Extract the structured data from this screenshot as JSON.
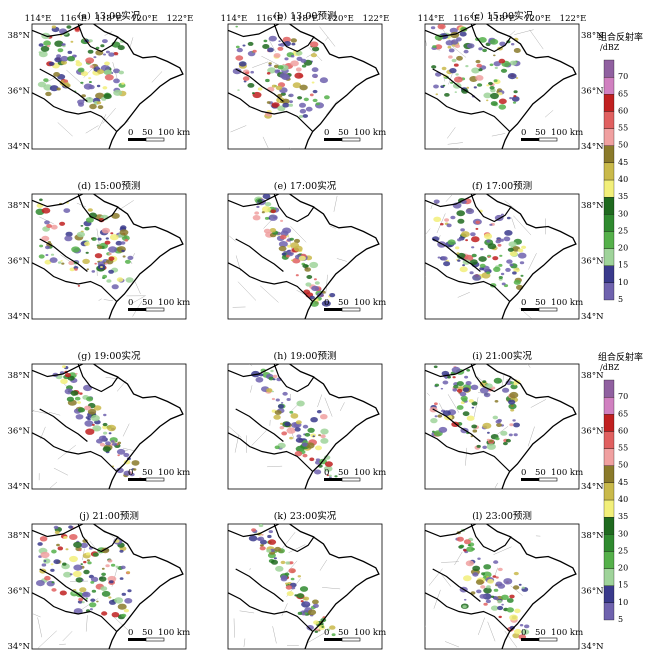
{
  "figure": {
    "panels": [
      {
        "label": "(a) 13:00实况",
        "pattern": "obs-early"
      },
      {
        "label": "(b) 13:00预测",
        "pattern": "fc-early"
      },
      {
        "label": "(c) 15:00实况",
        "pattern": "obs-mid"
      },
      {
        "label": "(d) 15:00预测",
        "pattern": "fc-mid"
      },
      {
        "label": "(e) 17:00实况",
        "pattern": "obs-line"
      },
      {
        "label": "(f) 17:00预测",
        "pattern": "fc-mid2"
      },
      {
        "label": "(g) 19:00实况",
        "pattern": "obs-line2"
      },
      {
        "label": "(h) 19:00预测",
        "pattern": "fc-line"
      },
      {
        "label": "(i) 21:00实况",
        "pattern": "obs-late"
      },
      {
        "label": "(j) 21:00预测",
        "pattern": "fc-late"
      },
      {
        "label": "(k) 23:00实况",
        "pattern": "obs-end"
      },
      {
        "label": "(l) 23:00预测",
        "pattern": "fc-end"
      }
    ],
    "lon_ticks": [
      "114°E",
      "116°E",
      "118°E",
      "120°E",
      "122°E"
    ],
    "lat_ticks": [
      "38°N",
      "36°N",
      "34°N"
    ],
    "scalebar": {
      "labels": [
        "0",
        "50",
        "100 km"
      ]
    },
    "colorbar": {
      "title": "组合反射率",
      "unit": "/dBZ",
      "levels": [
        "5",
        "10",
        "15",
        "20",
        "25",
        "30",
        "35",
        "40",
        "45",
        "50",
        "55",
        "60",
        "65",
        "70"
      ],
      "colors": [
        "#6f62ae",
        "#3a3a8c",
        "#9fd39a",
        "#55b04a",
        "#2f8a2f",
        "#1f6a1f",
        "#f2ef7a",
        "#c9b94a",
        "#8a7a2a",
        "#f0a0a0",
        "#e06060",
        "#c02020",
        "#d080c0",
        "#9060a0"
      ]
    },
    "map_colors": {
      "province_border": "#000000",
      "county_lines": "#9a9a9a",
      "land": "#ffffff"
    }
  }
}
